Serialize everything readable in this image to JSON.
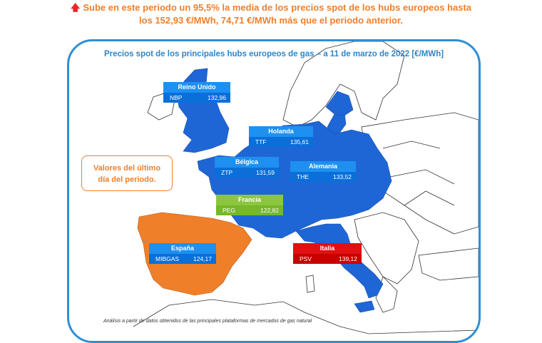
{
  "headline": {
    "line1": "Sube en este periodo un 95,5% la media de los precios spot de los hubs europeos hasta",
    "line2": "los 152,93 €/MWh, 74,71 €/MWh más que el periodo anterior.",
    "arrow_icon": "up-arrow-icon"
  },
  "map": {
    "title": "Precios spot de los principales hubs europeos de gas – a 11 de marzo de 2022 [€/MWh]",
    "note_line1": "Valores del último",
    "note_line2": "día del periodo.",
    "source": "Análisis a partir de datos obtenidos de las principales plataformas de mercados de gas natural",
    "colors": {
      "hub_blue": "#1e66d6",
      "spain": "#f07f2a",
      "frame": "#2e8fd4",
      "title": "#2f86c7"
    },
    "hubs": [
      {
        "country": "Reino Unido",
        "hub": "NBP",
        "price": "132,96"
      },
      {
        "country": "Holanda",
        "hub": "TTF",
        "price": "135,61"
      },
      {
        "country": "Bélgica",
        "hub": "ZTP",
        "price": "131,59"
      },
      {
        "country": "Alemania",
        "hub": "THE",
        "price": "133,52"
      },
      {
        "country": "Francia",
        "hub": "PEG",
        "price": "122,82"
      },
      {
        "country": "España",
        "hub": "MIBGAS",
        "price": "124,17"
      },
      {
        "country": "Italia",
        "hub": "PSV",
        "price": "139,12"
      }
    ]
  }
}
